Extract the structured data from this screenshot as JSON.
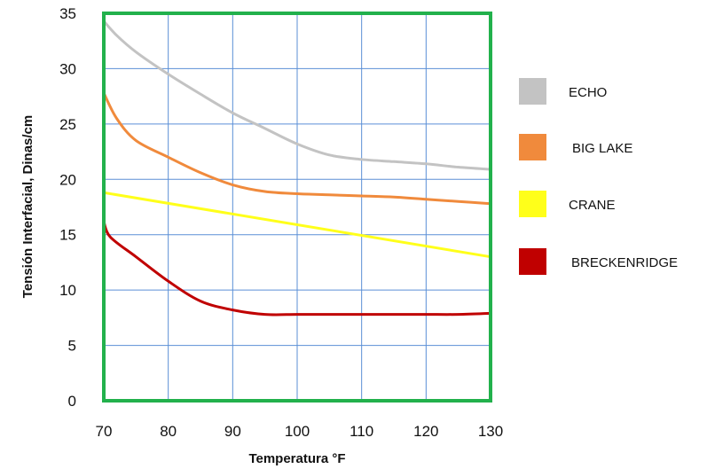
{
  "chart_data": {
    "type": "line",
    "title": "",
    "xlabel": "Temperatura °F",
    "ylabel": "Tensión Interfacial, Dinas/cm",
    "xlim": [
      70,
      130
    ],
    "ylim": [
      0,
      35
    ],
    "xticks": [
      70,
      80,
      90,
      100,
      110,
      120,
      130
    ],
    "yticks": [
      0,
      5,
      10,
      15,
      20,
      25,
      30,
      35
    ],
    "grid": true,
    "legend_position": "right",
    "colors": {
      "grid": "#5b8fd6",
      "frame": "#22b14c"
    },
    "series": [
      {
        "name": "ECHO",
        "color": "#c3c3c3",
        "x": [
          70,
          72,
          75,
          80,
          85,
          90,
          95,
          100,
          105,
          110,
          115,
          120,
          125,
          130
        ],
        "y": [
          34.3,
          33.0,
          31.5,
          29.5,
          27.7,
          26.0,
          24.6,
          23.2,
          22.2,
          21.8,
          21.6,
          21.4,
          21.1,
          20.9
        ]
      },
      {
        "name": "BIG LAKE",
        "color": "#f08a3c",
        "x": [
          70,
          72,
          75,
          80,
          85,
          90,
          95,
          100,
          105,
          110,
          115,
          120,
          125,
          130
        ],
        "y": [
          27.8,
          25.5,
          23.5,
          22.0,
          20.6,
          19.5,
          18.9,
          18.7,
          18.6,
          18.5,
          18.4,
          18.2,
          18.0,
          17.8
        ]
      },
      {
        "name": "CRANE",
        "color": "#ffff1a",
        "x": [
          70,
          130
        ],
        "y": [
          18.8,
          13.0
        ]
      },
      {
        "name": "BRECKENRIDGE",
        "color": "#c00000",
        "x": [
          70,
          71,
          75,
          80,
          85,
          90,
          95,
          100,
          105,
          110,
          115,
          120,
          125,
          130
        ],
        "y": [
          16.2,
          14.8,
          13.0,
          10.8,
          9.0,
          8.2,
          7.8,
          7.8,
          7.8,
          7.8,
          7.8,
          7.8,
          7.8,
          7.9
        ]
      }
    ]
  }
}
